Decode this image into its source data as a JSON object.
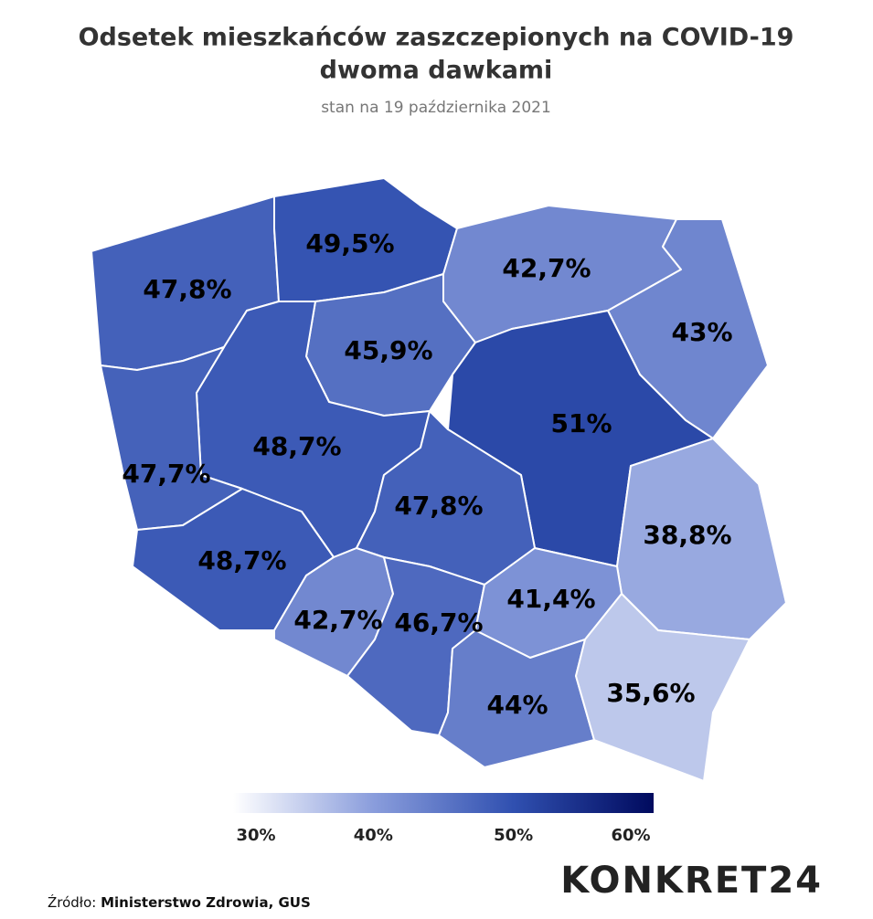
{
  "chart_data": {
    "type": "choropleth",
    "title": "Odsetek mieszkańców zaszczepionych na COVID-19",
    "title_line2": "dwoma dawkami",
    "subtitle": "stan na 19 października 2021",
    "values": [
      47.8,
      49.5,
      42.7,
      43,
      45.9,
      48.7,
      47.7,
      48.7,
      51,
      47.8,
      38.8,
      42.7,
      46.7,
      41.4,
      44,
      35.6
    ],
    "value_labels": [
      "47,8%",
      "49,5%",
      "42,7%",
      "43%",
      "45,9%",
      "48,7%",
      "47,7%",
      "48,7%",
      "51%",
      "47,8%",
      "38,8%",
      "42,7%",
      "46,7%",
      "41,4%",
      "44%",
      "35,6%"
    ],
    "colorbar": {
      "lim": [
        30,
        60
      ],
      "ticks": [
        {
          "value": 30,
          "label": "30%"
        },
        {
          "value": 40,
          "label": "40%"
        },
        {
          "value": 50,
          "label": "50%"
        },
        {
          "value": 60,
          "label": "60%"
        }
      ],
      "colors": [
        "#ffffff",
        "#8a9ddc",
        "#3050b0",
        "#000a5e"
      ]
    },
    "source_label": "Źródło:",
    "source": "Ministerstwo Zdrowia, GUS",
    "logo": "KONKRET24"
  }
}
